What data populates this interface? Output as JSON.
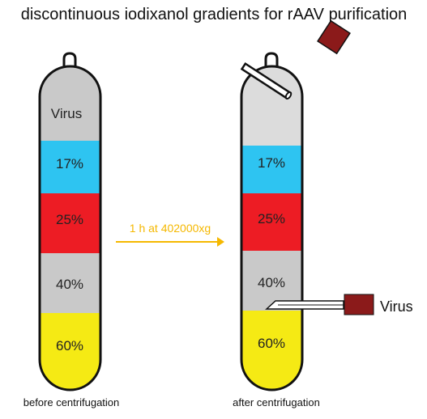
{
  "title": "discontinuous iodixanol gradients for rAAV purification",
  "arrow_label": "1 h at 402000xg",
  "extracted_virus_label": "Virus",
  "tubes": {
    "before": {
      "caption": "before centrifugation",
      "layers": [
        {
          "label": "Virus",
          "color": "#c9c9c9"
        },
        {
          "label": "17%",
          "color": "#2ec4f1"
        },
        {
          "label": "25%",
          "color": "#ed1c24"
        },
        {
          "label": "40%",
          "color": "#c9c9c9"
        },
        {
          "label": "60%",
          "color": "#f5ea14"
        }
      ]
    },
    "after": {
      "caption": "after centrifugation",
      "layers": [
        {
          "label": "",
          "color": "#dcdcdc"
        },
        {
          "label": "17%",
          "color": "#2ec4f1"
        },
        {
          "label": "25%",
          "color": "#ed1c24"
        },
        {
          "label": "40%",
          "color": "#c9c9c9"
        },
        {
          "label": "60%",
          "color": "#f5ea14"
        }
      ]
    }
  },
  "colors": {
    "arrow": "#f5b800",
    "syringe_bulb": "#8b1a1a",
    "tube_outline": "#111111"
  },
  "icons": [
    "pipette-icon",
    "syringe-needle-icon",
    "arrow-right-icon"
  ]
}
